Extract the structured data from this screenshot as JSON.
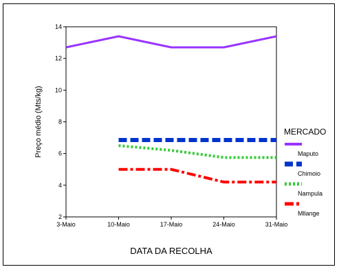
{
  "chart_data": {
    "type": "line",
    "categories": [
      "3-Maio",
      "10-Maio",
      "17-Maio",
      "24-Maio",
      "31-Maio"
    ],
    "xlabel": "DATA DA RECOLHA",
    "ylabel": "Preço médio (Mts/kg)",
    "ylim": [
      2,
      14
    ],
    "yticks": [
      2,
      4,
      6,
      8,
      10,
      12,
      14
    ],
    "grid": false,
    "legend": {
      "title": "MERCADO",
      "placement": "right"
    },
    "series": [
      {
        "name": "Maputo",
        "color": "#9933ff",
        "dash": "solid",
        "values": [
          12.7,
          13.4,
          12.7,
          12.7,
          13.4
        ]
      },
      {
        "name": "Chimoio",
        "color": "#0033cc",
        "dash": "dashed",
        "values": [
          null,
          6.85,
          6.85,
          6.85,
          6.85
        ]
      },
      {
        "name": "Nampula",
        "color": "#33cc33",
        "dash": "dotted",
        "values": [
          null,
          6.5,
          6.2,
          5.75,
          5.75
        ]
      },
      {
        "name": "Mllange",
        "color": "#ff0000",
        "dash": "dash-dot",
        "values": [
          null,
          5.0,
          5.0,
          4.2,
          4.2
        ]
      }
    ]
  }
}
